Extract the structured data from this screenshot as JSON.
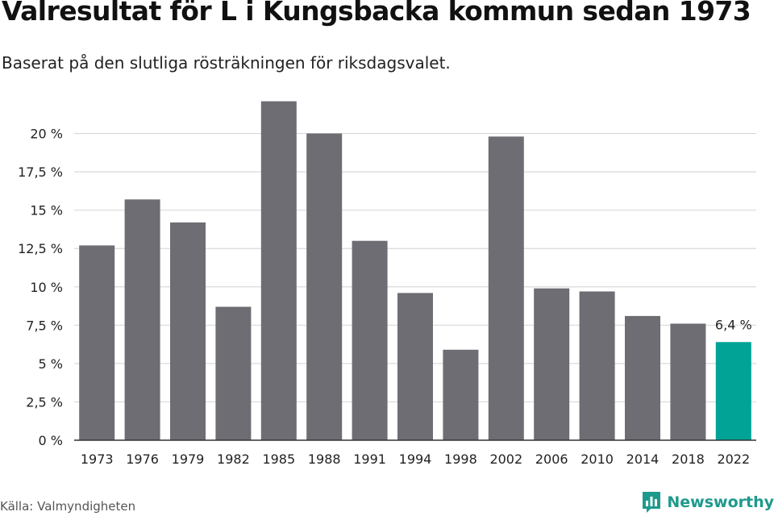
{
  "header": {
    "title": "Valresultat för L i Kungsbacka kommun sedan 1973",
    "subtitle": "Baserat på den slutliga rösträkningen för riksdagsvalet."
  },
  "footer": {
    "source": "Källa: Valmyndigheten",
    "brand": "Newsworthy"
  },
  "colors": {
    "bar": "#6e6d73",
    "highlight": "#00a396",
    "grid": "#d9d9d9",
    "axis": "#333333",
    "brand": "#1d9a8c"
  },
  "chart_data": {
    "type": "bar",
    "title": "Valresultat för L i Kungsbacka kommun sedan 1973",
    "subtitle": "Baserat på den slutliga rösträkningen för riksdagsvalet.",
    "categories": [
      "1973",
      "1976",
      "1979",
      "1982",
      "1985",
      "1988",
      "1991",
      "1994",
      "1998",
      "2002",
      "2006",
      "2010",
      "2014",
      "2018",
      "2022"
    ],
    "values": [
      12.7,
      15.7,
      14.2,
      8.7,
      22.1,
      20.0,
      13.0,
      9.6,
      5.9,
      19.8,
      9.9,
      9.7,
      8.1,
      7.6,
      6.4
    ],
    "highlight_index": 14,
    "data_labels": [
      {
        "index": 14,
        "text": "6,4 %"
      }
    ],
    "ylim": [
      0,
      22.5
    ],
    "yticks": [
      0,
      2.5,
      5,
      7.5,
      10,
      12.5,
      15,
      17.5,
      20
    ],
    "ytick_labels": [
      "0 %",
      "2,5 %",
      "5 %",
      "7,5 %",
      "10 %",
      "12,5 %",
      "15 %",
      "17,5 %",
      "20 %"
    ],
    "grid": true,
    "legend": "none"
  }
}
